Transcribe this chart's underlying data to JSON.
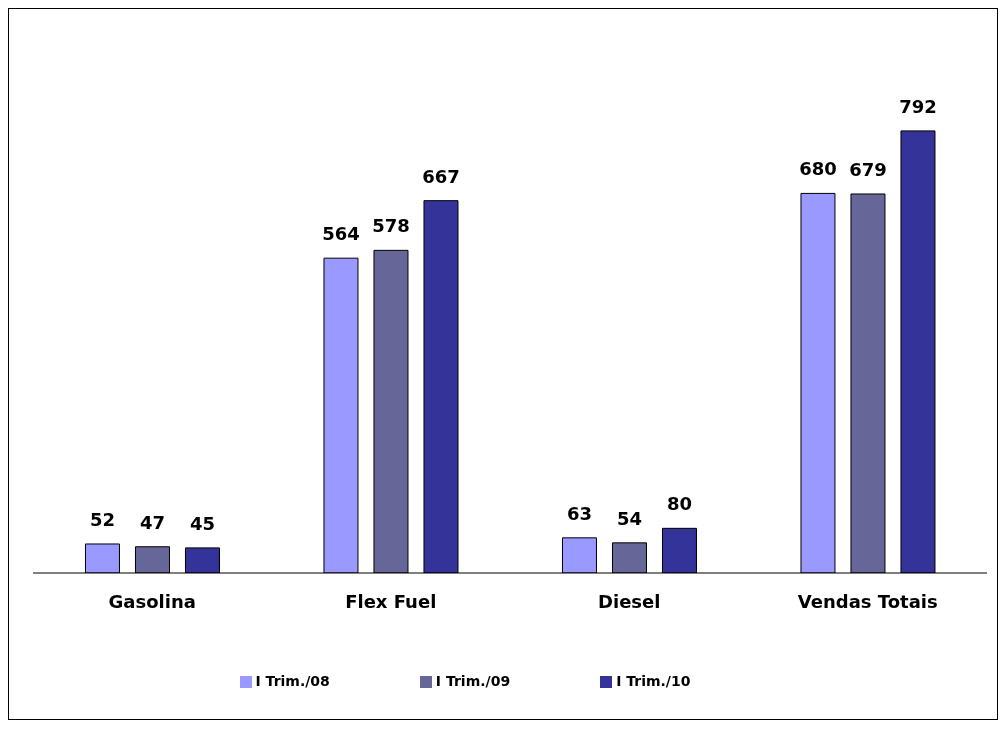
{
  "chart_data": {
    "type": "bar",
    "categories": [
      "Gasolina",
      "Flex Fuel",
      "Diesel",
      "Vendas Totais"
    ],
    "series": [
      {
        "name": "I Trim./08",
        "color": "#9999ff",
        "values": [
          52,
          564,
          63,
          680
        ]
      },
      {
        "name": "I Trim./09",
        "color": "#666699",
        "values": [
          47,
          578,
          54,
          679
        ]
      },
      {
        "name": "I Trim./10",
        "color": "#333399",
        "values": [
          45,
          667,
          80,
          792
        ]
      }
    ],
    "data_labels": true,
    "grid": false,
    "legend": "bottom"
  }
}
